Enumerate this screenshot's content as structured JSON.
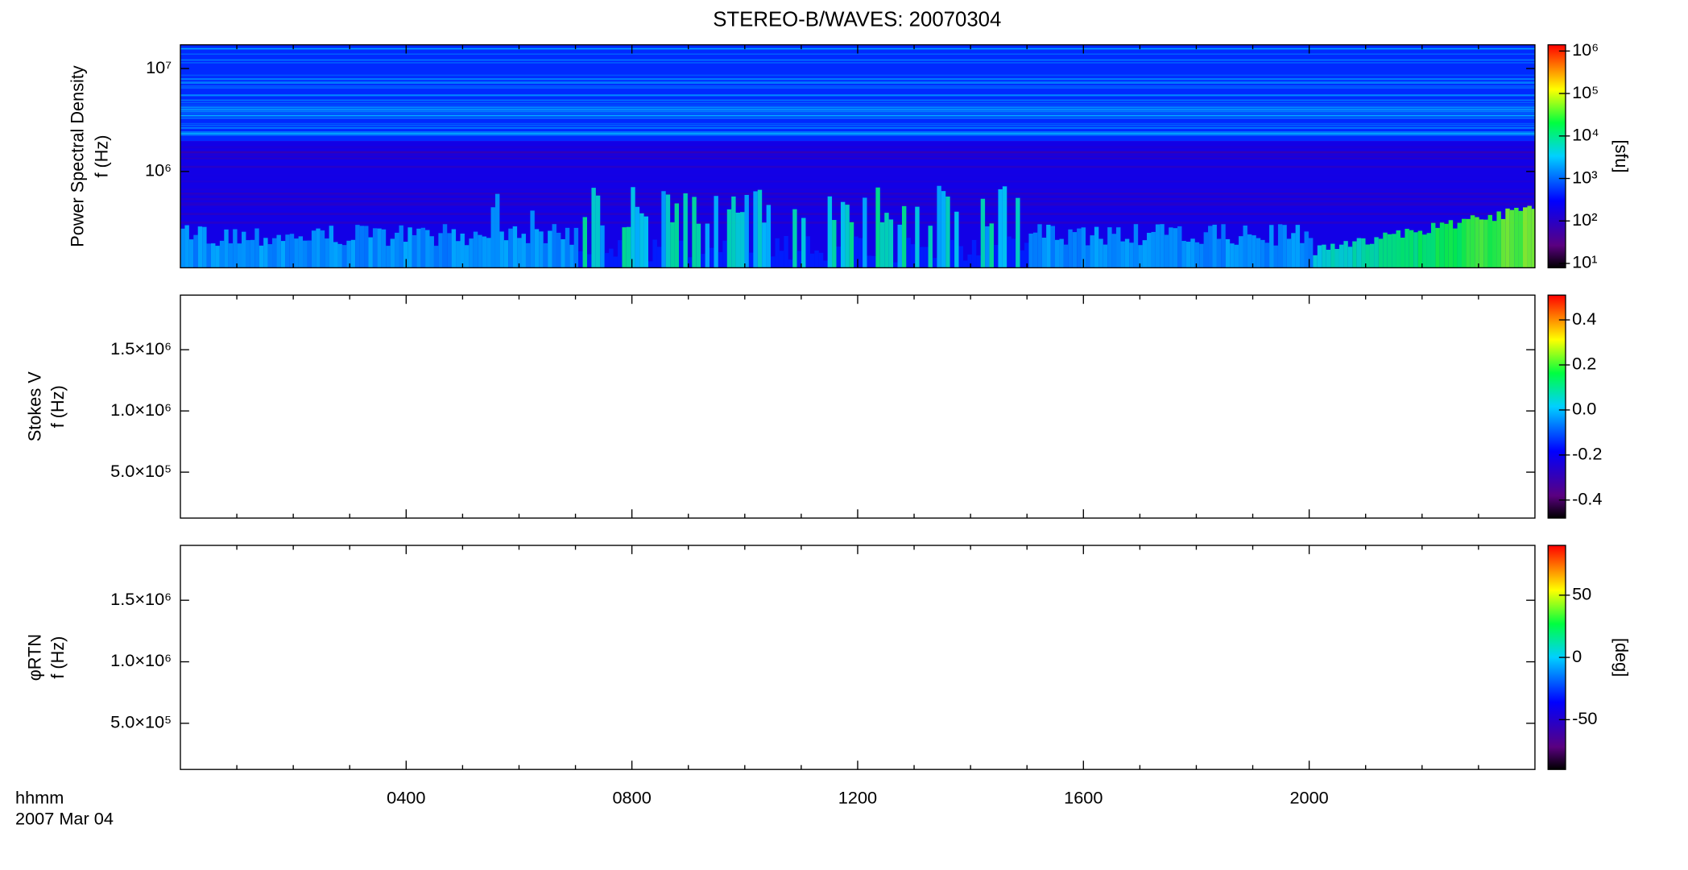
{
  "chart_data": [
    {
      "type": "spectrogram",
      "title": "STEREO-B/WAVES: 20070304",
      "ylabel": [
        "Power Spectral Density",
        "f (Hz)"
      ],
      "ylog": true,
      "ylim": [
        116000,
        17000000
      ],
      "yticks": [
        {
          "value": 1000000,
          "label": "10⁶"
        },
        {
          "value": 10000000,
          "label": "10⁷"
        }
      ],
      "xlim": [
        0,
        24
      ],
      "colorbar": {
        "label": "[sfu]",
        "log": true,
        "lim": [
          7.9,
          1400000
        ],
        "ticks": [
          {
            "value": 10,
            "label": "10¹"
          },
          {
            "value": 100,
            "label": "10²"
          },
          {
            "value": 1000,
            "label": "10³"
          },
          {
            "value": 10000,
            "label": "10⁴"
          },
          {
            "value": 100000,
            "label": "10⁵"
          },
          {
            "value": 1000000,
            "label": "10⁶"
          }
        ]
      }
    },
    {
      "type": "spectrogram",
      "ylabel": [
        "Stokes V",
        "f (Hz)"
      ],
      "ylog": false,
      "ylim": [
        125000,
        1946000
      ],
      "yticks": [
        {
          "value": 500000,
          "label": "5.0×10⁵"
        },
        {
          "value": 1000000,
          "label": "1.0×10⁶"
        },
        {
          "value": 1500000,
          "label": "1.5×10⁶"
        }
      ],
      "xlim": [
        0,
        24
      ],
      "colorbar": {
        "log": false,
        "lim": [
          -0.48,
          0.51
        ],
        "ticks": [
          -0.4,
          -0.2,
          {
            "value": 0,
            "label": "0.0"
          },
          0.2,
          0.4
        ]
      }
    },
    {
      "type": "spectrogram",
      "ylabel": [
        "φRTN",
        "f (Hz)"
      ],
      "ylog": false,
      "ylim": [
        125000,
        1946000
      ],
      "yticks": [
        {
          "value": 500000,
          "label": "5.0×10⁵"
        },
        {
          "value": 1000000,
          "label": "1.0×10⁶"
        },
        {
          "value": 1500000,
          "label": "1.5×10⁶"
        }
      ],
      "xlim": [
        0,
        24
      ],
      "xticks": [
        {
          "value": 4,
          "label": "0400"
        },
        {
          "value": 8,
          "label": "0800"
        },
        {
          "value": 12,
          "label": "1200"
        },
        {
          "value": 16,
          "label": "1600"
        },
        {
          "value": 20,
          "label": "2000"
        }
      ],
      "xminorticks": [
        1,
        2,
        3,
        5,
        6,
        7,
        9,
        10,
        11,
        13,
        14,
        15,
        17,
        18,
        19,
        21,
        22,
        23
      ],
      "xlabel": [
        "hhmm",
        "2007 Mar 04"
      ],
      "colorbar": {
        "label": "[deg]",
        "log": false,
        "lim": [
          -90,
          90
        ],
        "ticks": [
          -50,
          0,
          50
        ]
      }
    }
  ]
}
